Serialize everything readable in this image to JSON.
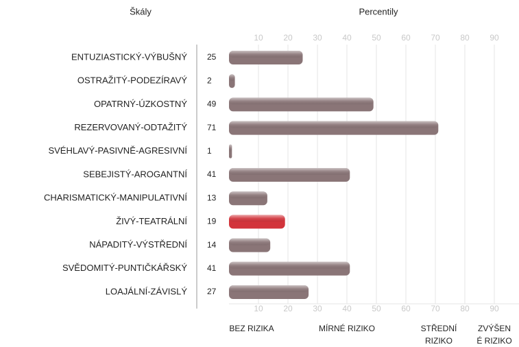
{
  "chart_data": {
    "type": "bar",
    "left_header": "Škály",
    "title": "Percentily",
    "categories": [
      "ENTUZIASTICKÝ-VÝBUŠNÝ",
      "OSTRAŽITÝ-PODEZÍRAVÝ",
      "OPATRNÝ-ÚZKOSTNÝ",
      "REZERVOVANÝ-ODTAŽITÝ",
      "SVÉHLAVÝ-PASIVNĚ-AGRESIVNÍ",
      "SEBEJISTÝ-AROGANTNÍ",
      "CHARISMATICKÝ-MANIPULATIVNÍ",
      "ŽIVÝ-TEATRÁLNÍ",
      "NÁPADITÝ-VÝSTŘEDNÍ",
      "SVĚDOMITÝ-PUNTIČKÁŘSKÝ",
      "LOAJÁLNÍ-ZÁVISLÝ"
    ],
    "values": [
      25,
      2,
      49,
      71,
      1,
      41,
      13,
      19,
      14,
      41,
      27
    ],
    "colors": [
      "#8a7577",
      "#8a7577",
      "#8a7577",
      "#8a7577",
      "#8a7577",
      "#8a7577",
      "#8a7577",
      "#d2343b",
      "#8a7577",
      "#8a7577",
      "#8a7577"
    ],
    "xlim": [
      0,
      100
    ],
    "xticks": [
      10,
      20,
      30,
      40,
      50,
      60,
      70,
      80,
      90
    ],
    "grid": true,
    "zones": [
      [
        "BEZ RIZIKA"
      ],
      [
        "MÍRNÉ RIZIKO"
      ],
      [
        "STŘEDNÍ",
        "RIZIKO"
      ],
      [
        "ZVÝŠEN",
        "É RIZIKO"
      ]
    ]
  }
}
